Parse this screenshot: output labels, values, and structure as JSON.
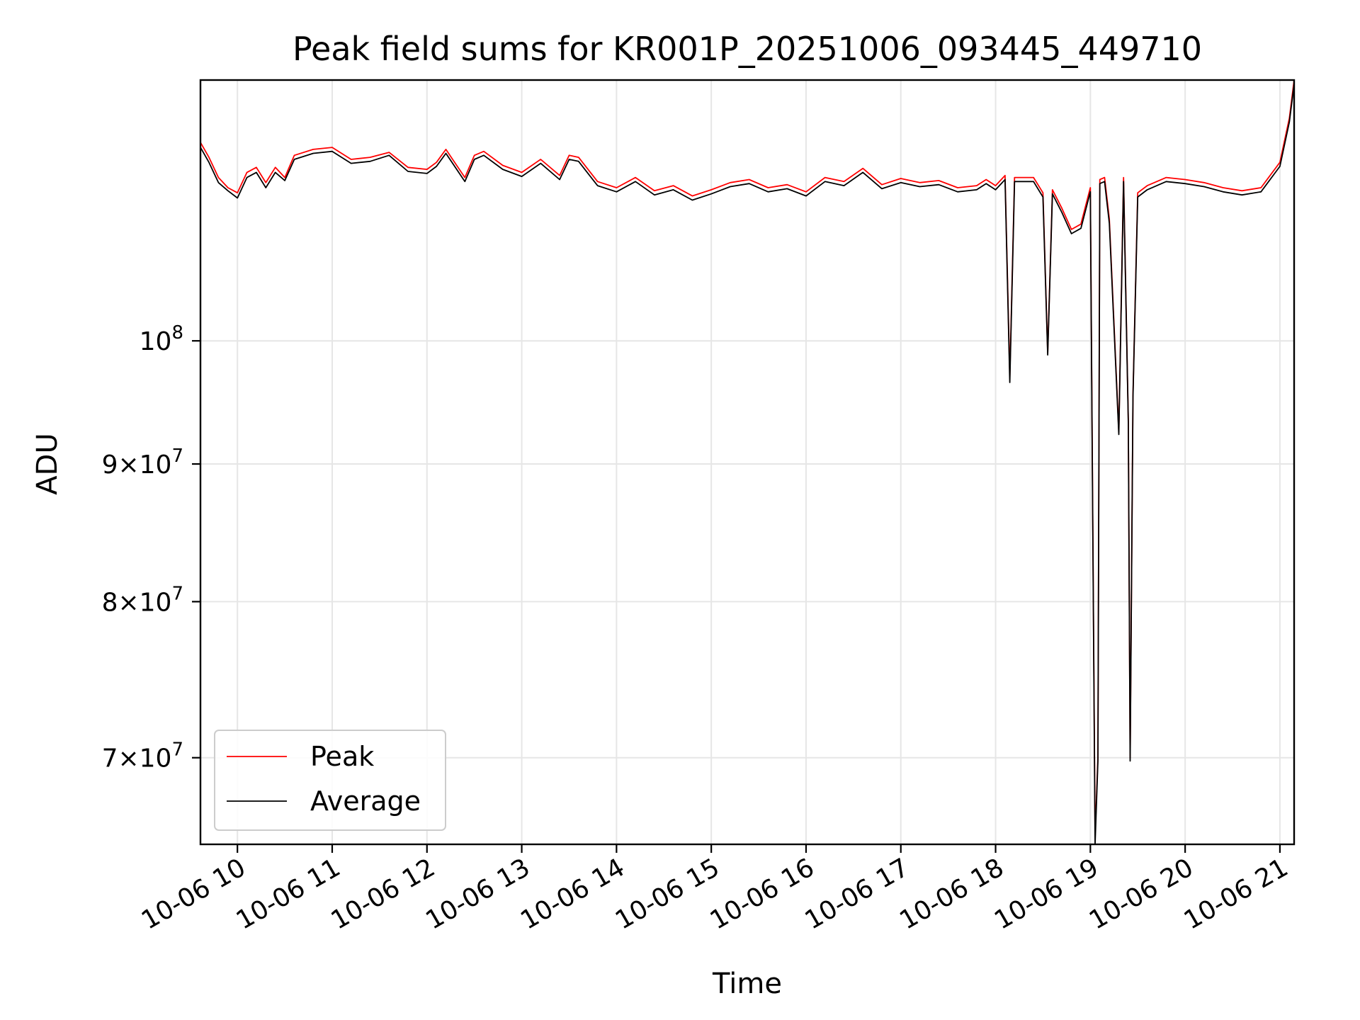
{
  "chart_data": {
    "type": "line",
    "title": "Peak field sums for KR001P_20251006_093445_449710",
    "xlabel": "Time",
    "ylabel": "ADU",
    "yscale": "log",
    "ylim": [
      65000000,
      125000000
    ],
    "xlim_hours": [
      9.61,
      21.15
    ],
    "x_ticks": [
      {
        "hour": 10,
        "label": "10-06 10"
      },
      {
        "hour": 11,
        "label": "10-06 11"
      },
      {
        "hour": 12,
        "label": "10-06 12"
      },
      {
        "hour": 13,
        "label": "10-06 13"
      },
      {
        "hour": 14,
        "label": "10-06 14"
      },
      {
        "hour": 15,
        "label": "10-06 15"
      },
      {
        "hour": 16,
        "label": "10-06 16"
      },
      {
        "hour": 17,
        "label": "10-06 17"
      },
      {
        "hour": 18,
        "label": "10-06 18"
      },
      {
        "hour": 19,
        "label": "10-06 19"
      },
      {
        "hour": 20,
        "label": "10-06 20"
      },
      {
        "hour": 21,
        "label": "10-06 21"
      }
    ],
    "y_ticks": [
      {
        "value": 70000000,
        "mantissa": "7",
        "exponent": "7"
      },
      {
        "value": 80000000,
        "mantissa": "8",
        "exponent": "7"
      },
      {
        "value": 90000000,
        "mantissa": "9",
        "exponent": "7"
      },
      {
        "value": 100000000,
        "mantissa": "",
        "exponent": "8"
      }
    ],
    "grid": true,
    "legend_position": "lower-left",
    "series": [
      {
        "name": "Peak",
        "color": "#ff0000",
        "x_hours": [
          9.61,
          9.7,
          9.8,
          9.9,
          10.0,
          10.1,
          10.2,
          10.3,
          10.4,
          10.5,
          10.6,
          10.8,
          11.0,
          11.2,
          11.4,
          11.6,
          11.8,
          12.0,
          12.1,
          12.2,
          12.4,
          12.5,
          12.6,
          12.8,
          13.0,
          13.2,
          13.4,
          13.5,
          13.6,
          13.8,
          14.0,
          14.2,
          14.4,
          14.6,
          14.8,
          15.0,
          15.2,
          15.4,
          15.6,
          15.8,
          16.0,
          16.2,
          16.4,
          16.6,
          16.8,
          17.0,
          17.2,
          17.4,
          17.6,
          17.8,
          17.9,
          18.0,
          18.1,
          18.15,
          18.2,
          18.4,
          18.5,
          18.55,
          18.6,
          18.7,
          18.8,
          18.9,
          19.0,
          19.05,
          19.08,
          19.1,
          19.15,
          19.2,
          19.3,
          19.35,
          19.4,
          19.42,
          19.45,
          19.5,
          19.6,
          19.8,
          20.0,
          20.2,
          20.4,
          20.6,
          20.8,
          21.0,
          21.1,
          21.15
        ],
        "values": [
          118500000,
          117000000,
          115000000,
          114000000,
          113500000,
          115500000,
          116000000,
          114500000,
          116000000,
          115000000,
          117200000,
          117800000,
          118000000,
          116800000,
          117000000,
          117500000,
          116000000,
          115800000,
          116500000,
          117800000,
          115000000,
          117200000,
          117600000,
          116200000,
          115500000,
          116800000,
          115200000,
          117200000,
          117000000,
          114600000,
          114000000,
          115000000,
          113700000,
          114200000,
          113200000,
          113800000,
          114500000,
          114800000,
          114000000,
          114300000,
          113600000,
          115000000,
          114600000,
          115900000,
          114300000,
          114900000,
          114500000,
          114700000,
          114000000,
          114200000,
          114800000,
          114200000,
          115200000,
          97000000,
          115000000,
          115000000,
          113500000,
          99000000,
          113800000,
          112000000,
          110000000,
          110500000,
          114000000,
          65500000,
          70000000,
          114800000,
          115000000,
          111000000,
          92500000,
          115000000,
          93500000,
          70000000,
          95500000,
          113500000,
          114200000,
          115000000,
          114800000,
          114500000,
          114000000,
          113700000,
          114000000,
          116500000,
          121000000,
          125000000
        ]
      },
      {
        "name": "Average",
        "color": "#000000",
        "x_hours": [
          9.61,
          9.7,
          9.8,
          9.9,
          10.0,
          10.1,
          10.2,
          10.3,
          10.4,
          10.5,
          10.6,
          10.8,
          11.0,
          11.2,
          11.4,
          11.6,
          11.8,
          12.0,
          12.1,
          12.2,
          12.4,
          12.5,
          12.6,
          12.8,
          13.0,
          13.2,
          13.4,
          13.5,
          13.6,
          13.8,
          14.0,
          14.2,
          14.4,
          14.6,
          14.8,
          15.0,
          15.2,
          15.4,
          15.6,
          15.8,
          16.0,
          16.2,
          16.4,
          16.6,
          16.8,
          17.0,
          17.2,
          17.4,
          17.6,
          17.8,
          17.9,
          18.0,
          18.1,
          18.15,
          18.2,
          18.4,
          18.5,
          18.55,
          18.6,
          18.7,
          18.8,
          18.9,
          19.0,
          19.05,
          19.08,
          19.1,
          19.15,
          19.2,
          19.3,
          19.35,
          19.4,
          19.42,
          19.45,
          19.5,
          19.6,
          19.8,
          20.0,
          20.2,
          20.4,
          20.6,
          20.8,
          21.0,
          21.1,
          21.15
        ],
        "values": [
          118000000,
          116500000,
          114500000,
          113700000,
          113000000,
          115000000,
          115500000,
          114000000,
          115500000,
          114700000,
          116800000,
          117400000,
          117600000,
          116400000,
          116600000,
          117200000,
          115600000,
          115400000,
          116100000,
          117400000,
          114600000,
          116800000,
          117200000,
          115800000,
          115100000,
          116400000,
          114800000,
          116800000,
          116600000,
          114200000,
          113600000,
          114600000,
          113300000,
          113800000,
          112800000,
          113400000,
          114100000,
          114400000,
          113600000,
          113900000,
          113200000,
          114600000,
          114200000,
          115500000,
          113900000,
          114500000,
          114100000,
          114300000,
          113600000,
          113800000,
          114400000,
          113800000,
          114800000,
          96500000,
          114600000,
          114600000,
          113100000,
          98800000,
          113400000,
          111600000,
          109600000,
          110100000,
          113600000,
          65000000,
          69800000,
          114400000,
          114600000,
          110600000,
          92300000,
          114600000,
          93300000,
          69800000,
          95300000,
          113100000,
          113800000,
          114600000,
          114400000,
          114100000,
          113600000,
          113300000,
          113600000,
          116100000,
          120600000,
          124600000
        ]
      }
    ]
  }
}
